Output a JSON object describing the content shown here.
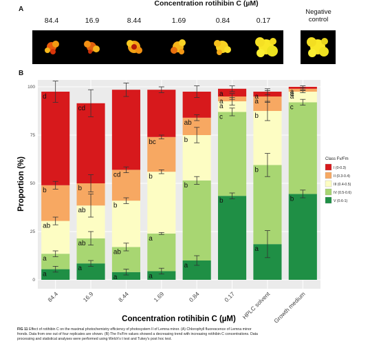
{
  "panelA": {
    "letter": "A",
    "title": "Concentration rotihibin C (µM)",
    "concentrations": [
      "84.4",
      "16.9",
      "8.44",
      "1.69",
      "0.84",
      "0.17"
    ],
    "negative_control": [
      "Negative",
      "control"
    ]
  },
  "panelB": {
    "letter": "B"
  },
  "chart_data": {
    "type": "bar",
    "stacked": true,
    "ylabel": "Proportion (%)",
    "xlabel": "Concentration rotihibin C (µM)",
    "ylim": [
      0,
      100
    ],
    "yticks": [
      0,
      25,
      50,
      75,
      100
    ],
    "grid": true,
    "legend_position": "right",
    "legend_title": "Class Fv/Fm",
    "categories": [
      "84.4",
      "16.9",
      "8.44",
      "1.69",
      "0.84",
      "0.17",
      "HPLC solvent",
      "Growth medium"
    ],
    "series": [
      {
        "name": "V (0.6-1)",
        "color": "#1f8f45",
        "values": [
          5.5,
          8.5,
          4,
          4.5,
          10,
          43.5,
          18.5,
          44.5
        ],
        "errors": [
          1.5,
          1.5,
          1.5,
          1.5,
          2.5,
          1.5,
          7,
          2
        ],
        "labels": [
          "a",
          "a",
          "a",
          "a",
          "a",
          "b",
          "a",
          "b"
        ]
      },
      {
        "name": "IV (0.5-0.6)",
        "color": "#a8d672",
        "values": [
          8,
          13,
          13,
          19.5,
          41.5,
          43.5,
          41,
          47.5
        ],
        "errors": [
          1.5,
          3.5,
          2,
          0.5,
          2,
          2,
          6,
          1.5
        ],
        "labels": [
          "a",
          "ab",
          "ab",
          "a",
          "b",
          "c",
          "b",
          "c"
        ]
      },
      {
        "name": "III (0.4-0.5)",
        "color": "#fdfdc3",
        "values": [
          17,
          17,
          24,
          32,
          23.5,
          5.5,
          28,
          5.5
        ],
        "errors": [
          2,
          6,
          1.5,
          1,
          4,
          2,
          5,
          0.5
        ],
        "labels": [
          "ab",
          "ab",
          "b",
          "b",
          "b",
          "a",
          "b",
          "a"
        ]
      },
      {
        "name": "II (0.3-0.4)",
        "color": "#f7a862",
        "values": [
          18.5,
          11.5,
          16,
          18,
          9,
          2.5,
          7.5,
          1.5
        ],
        "errors": [
          2,
          4.5,
          1.5,
          1,
          1.5,
          1.5,
          3,
          0.5
        ],
        "labels": [
          "b",
          "b",
          "cd",
          "bc",
          "ab",
          "a",
          "a",
          "a"
        ]
      },
      {
        "name": "I (0-0.3)",
        "color": "#d7191c",
        "values": [
          48.5,
          41.5,
          41.5,
          24.5,
          13.5,
          4,
          2.5,
          1
        ],
        "errors": [
          5.5,
          7,
          3.5,
          1.5,
          3,
          1.5,
          1.5,
          0.5
        ],
        "labels": [
          "d",
          "cd",
          "",
          "",
          "",
          "a",
          "a",
          "a"
        ]
      }
    ]
  },
  "caption": {
    "fig": "FIG 11",
    "line1": " Effect of rotihibin C on the maximal photochemistry efficiency of photosystem II of Lemna minor. (A) Chlorophyll fluorescence of Lemna minor",
    "line2": "fronds. Data from one out of four replicates are shown. (B) The Fv/Fm values showed a decreasing trend with increasing rotihibin C concentrations. Data",
    "line3": "processing and statistical analyses were performed using Welch's t test and Tukey's post hoc test."
  }
}
